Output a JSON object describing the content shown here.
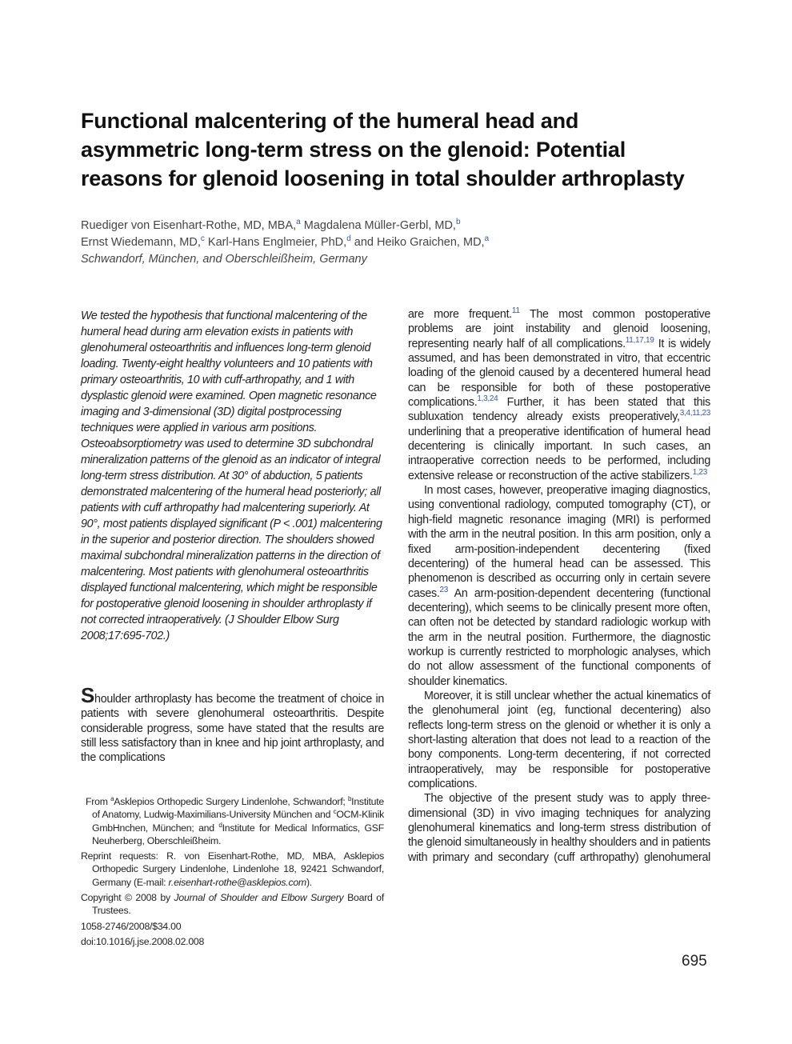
{
  "title_lines": [
    "Functional malcentering of the humeral head and",
    "asymmetric long-term stress on the glenoid: Potential",
    "reasons for glenoid loosening in total shoulder arthroplasty"
  ],
  "authors": [
    [
      "Ruediger von Eisenhart-Rothe, MD, MBA,",
      {
        "sup": "a"
      },
      " Magdalena Müller-Gerbl, MD,",
      {
        "sup": "b"
      }
    ],
    [
      "Ernst Wiedemann, MD,",
      {
        "sup": "c"
      },
      " Karl-Hans Englmeier, PhD,",
      {
        "sup": "d"
      },
      " and Heiko Graichen, MD,",
      {
        "sup": "a"
      }
    ]
  ],
  "location": "Schwandorf, München, and Oberschleißheim, Germany",
  "abstract": "We tested the hypothesis that functional malcentering of the humeral head during arm elevation exists in patients with glenohumeral osteoarthritis and influences long-term glenoid loading. Twenty-eight healthy volunteers and 10 patients with primary osteoarthritis, 10 with cuff-arthropathy, and 1 with dysplastic glenoid were examined. Open magnetic resonance imaging and 3-dimensional (3D) digital postprocessing techniques were applied in various arm positions. Osteoabsorptiometry was used to determine 3D subchondral mineralization patterns of the glenoid as an indicator of integral long-term stress distribution. At 30° of abduction, 5 patients demonstrated malcentering of the humeral head posteriorly; all patients with cuff arthropathy had malcentering superiorly. At 90°, most patients displayed significant (P < .001) malcentering in the superior and posterior direction. The shoulders showed maximal subchondral mineralization patterns in the direction of malcentering. Most patients with glenohumeral osteoarthritis displayed functional malcentering, which might be responsible for postoperative glenoid loosening in shoulder arthroplasty if not corrected intraoperatively. (J Shoulder Elbow Surg 2008;17:695-702.)",
  "intro": [
    {
      "dropcap": "S"
    },
    "houlder arthroplasty has become the treatment of choice in patients with severe glenohumeral osteoarthritis. Despite considerable progress, some have stated that the results are still less satisfactory than in knee and hip joint arthroplasty, and the complications"
  ],
  "footnotes": [
    [
      "From ",
      {
        "sup": "a"
      },
      "Asklepios Orthopedic Surgery Lindenlohe, Schwandorf; ",
      {
        "sup": "b"
      },
      "Institute of Anatomy, Ludwig-Maximilians-University München and ",
      {
        "sup": "c"
      },
      "OCM-Klinik GmbHnchen, München; and ",
      {
        "sup": "d"
      },
      "Institute for Medical Informatics, GSF Neuherberg, Oberschleißheim."
    ],
    [
      "Reprint requests: R. von Eisenhart-Rothe, MD, MBA, Asklepios Orthopedic Surgery Lindenlohe, Lindenlohe 18, 92421 Schwandorf, Germany (E-mail: ",
      {
        "i": "r.eisenhart-rothe@asklepios.com"
      },
      ")."
    ],
    [
      "Copyright © 2008 by ",
      {
        "i": "Journal of Shoulder and Elbow Surgery"
      },
      " Board of Trustees."
    ],
    [
      "1058-2746/2008/$34.00"
    ],
    [
      "doi:10.1016/j.jse.2008.02.008"
    ]
  ],
  "right_paragraphs": [
    [
      "are more frequent.",
      {
        "sup": "11"
      },
      " The most common postoperative problems are joint instability and glenoid loosening, representing nearly half of all complications.",
      {
        "sup": "11,17,19"
      },
      " It is widely assumed, and has been demonstrated in vitro, that eccentric loading of the glenoid caused by a decentered humeral head can be responsible for both of these postoperative complications.",
      {
        "sup": "1,3,24"
      },
      " Further, it has been stated that this subluxation tendency already exists preoperatively,",
      {
        "sup": "3,4,11,23"
      },
      " underlining that a preoperative identification of humeral head decentering is clinically important. In such cases, an intraoperative correction needs to be performed, including extensive release or reconstruction of the active stabilizers.",
      {
        "sup": "1,23"
      }
    ],
    [
      "In most cases, however, preoperative imaging diagnostics, using conventional radiology, computed tomography (CT), or high-field magnetic resonance imaging (MRI) is performed with the arm in the neutral position. In this arm position, only a fixed arm-position-independent decentering (fixed decentering) of the humeral head can be assessed. This phenomenon is described as occurring only in certain severe cases.",
      {
        "sup": "23"
      },
      " An arm-position-dependent decentering (functional decentering), which seems to be clinically present more often, can often not be detected by standard radiologic workup with the arm in the neutral position. Furthermore, the diagnostic workup is currently restricted to morphologic analyses, which do not allow assessment of the functional components of shoulder kinematics."
    ],
    [
      "Moreover, it is still unclear whether the actual kinematics of the glenohumeral joint (eg, functional decentering) also reflects long-term stress on the glenoid or whether it is only a short-lasting alteration that does not lead to a reaction of the bony components. Long-term decentering, if not corrected intraoperatively, may be responsible for postoperative complications."
    ],
    [
      "The objective of the present study was to apply three-dimensional (3D) in vivo imaging techniques for analyzing glenohumeral kinematics and long-term stress distribution of the glenoid simultaneously in healthy shoulders and in patients with primary and secondary (cuff arthropathy) glenohumeral"
    ]
  ],
  "page_number": "695"
}
